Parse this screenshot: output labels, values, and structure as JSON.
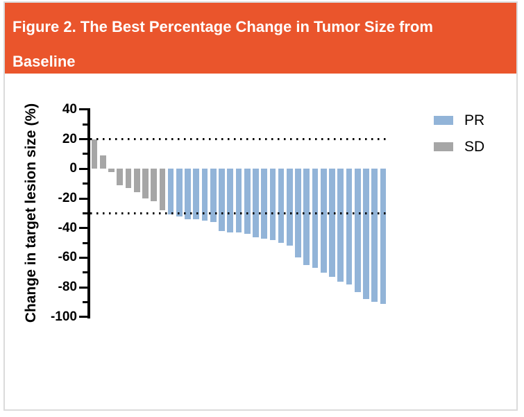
{
  "figure": {
    "title_line1": "Figure 2. The Best Percentage Change in Tumor Size from",
    "title_line2": "Baseline"
  },
  "colors": {
    "header_bg": "#EA552C",
    "header_text": "#FFFFFF",
    "pr_bar": "#92B4D8",
    "sd_bar": "#A6A6A6",
    "axis": "#000000",
    "card_border": "#DBDBDB"
  },
  "chart_data": {
    "type": "bar",
    "subtype": "waterfall",
    "title": "Figure 2. The Best Percentage Change in Tumor Size from Baseline",
    "xlabel": "",
    "ylabel": "Change in target lesion size (%)",
    "ylim": [
      -100,
      40
    ],
    "ytick_major": [
      40,
      20,
      0,
      -20,
      -40,
      -60,
      -80,
      -100
    ],
    "ytick_minor": [
      30,
      10,
      -10,
      -30,
      -50,
      -70,
      -90
    ],
    "reference_lines": [
      20,
      -30
    ],
    "grid": "off",
    "legend_position": "upper right",
    "legend": [
      {
        "label": "PR",
        "color": "#92B4D8"
      },
      {
        "label": "SD",
        "color": "#A6A6A6"
      }
    ],
    "bars": [
      {
        "group": "SD",
        "value": 20
      },
      {
        "group": "SD",
        "value": 9
      },
      {
        "group": "SD",
        "value": -2
      },
      {
        "group": "SD",
        "value": -11
      },
      {
        "group": "SD",
        "value": -13
      },
      {
        "group": "SD",
        "value": -16
      },
      {
        "group": "SD",
        "value": -20
      },
      {
        "group": "SD",
        "value": -22
      },
      {
        "group": "SD",
        "value": -28
      },
      {
        "group": "PR",
        "value": -31
      },
      {
        "group": "PR",
        "value": -32
      },
      {
        "group": "PR",
        "value": -34
      },
      {
        "group": "PR",
        "value": -34
      },
      {
        "group": "PR",
        "value": -35
      },
      {
        "group": "PR",
        "value": -36
      },
      {
        "group": "PR",
        "value": -42
      },
      {
        "group": "PR",
        "value": -43
      },
      {
        "group": "PR",
        "value": -43
      },
      {
        "group": "PR",
        "value": -44
      },
      {
        "group": "PR",
        "value": -46
      },
      {
        "group": "PR",
        "value": -47
      },
      {
        "group": "PR",
        "value": -48
      },
      {
        "group": "PR",
        "value": -50
      },
      {
        "group": "PR",
        "value": -52
      },
      {
        "group": "PR",
        "value": -60
      },
      {
        "group": "PR",
        "value": -65
      },
      {
        "group": "PR",
        "value": -67
      },
      {
        "group": "PR",
        "value": -70
      },
      {
        "group": "PR",
        "value": -73
      },
      {
        "group": "PR",
        "value": -76
      },
      {
        "group": "PR",
        "value": -78
      },
      {
        "group": "PR",
        "value": -83
      },
      {
        "group": "PR",
        "value": -88
      },
      {
        "group": "PR",
        "value": -90
      },
      {
        "group": "PR",
        "value": -91
      }
    ]
  }
}
